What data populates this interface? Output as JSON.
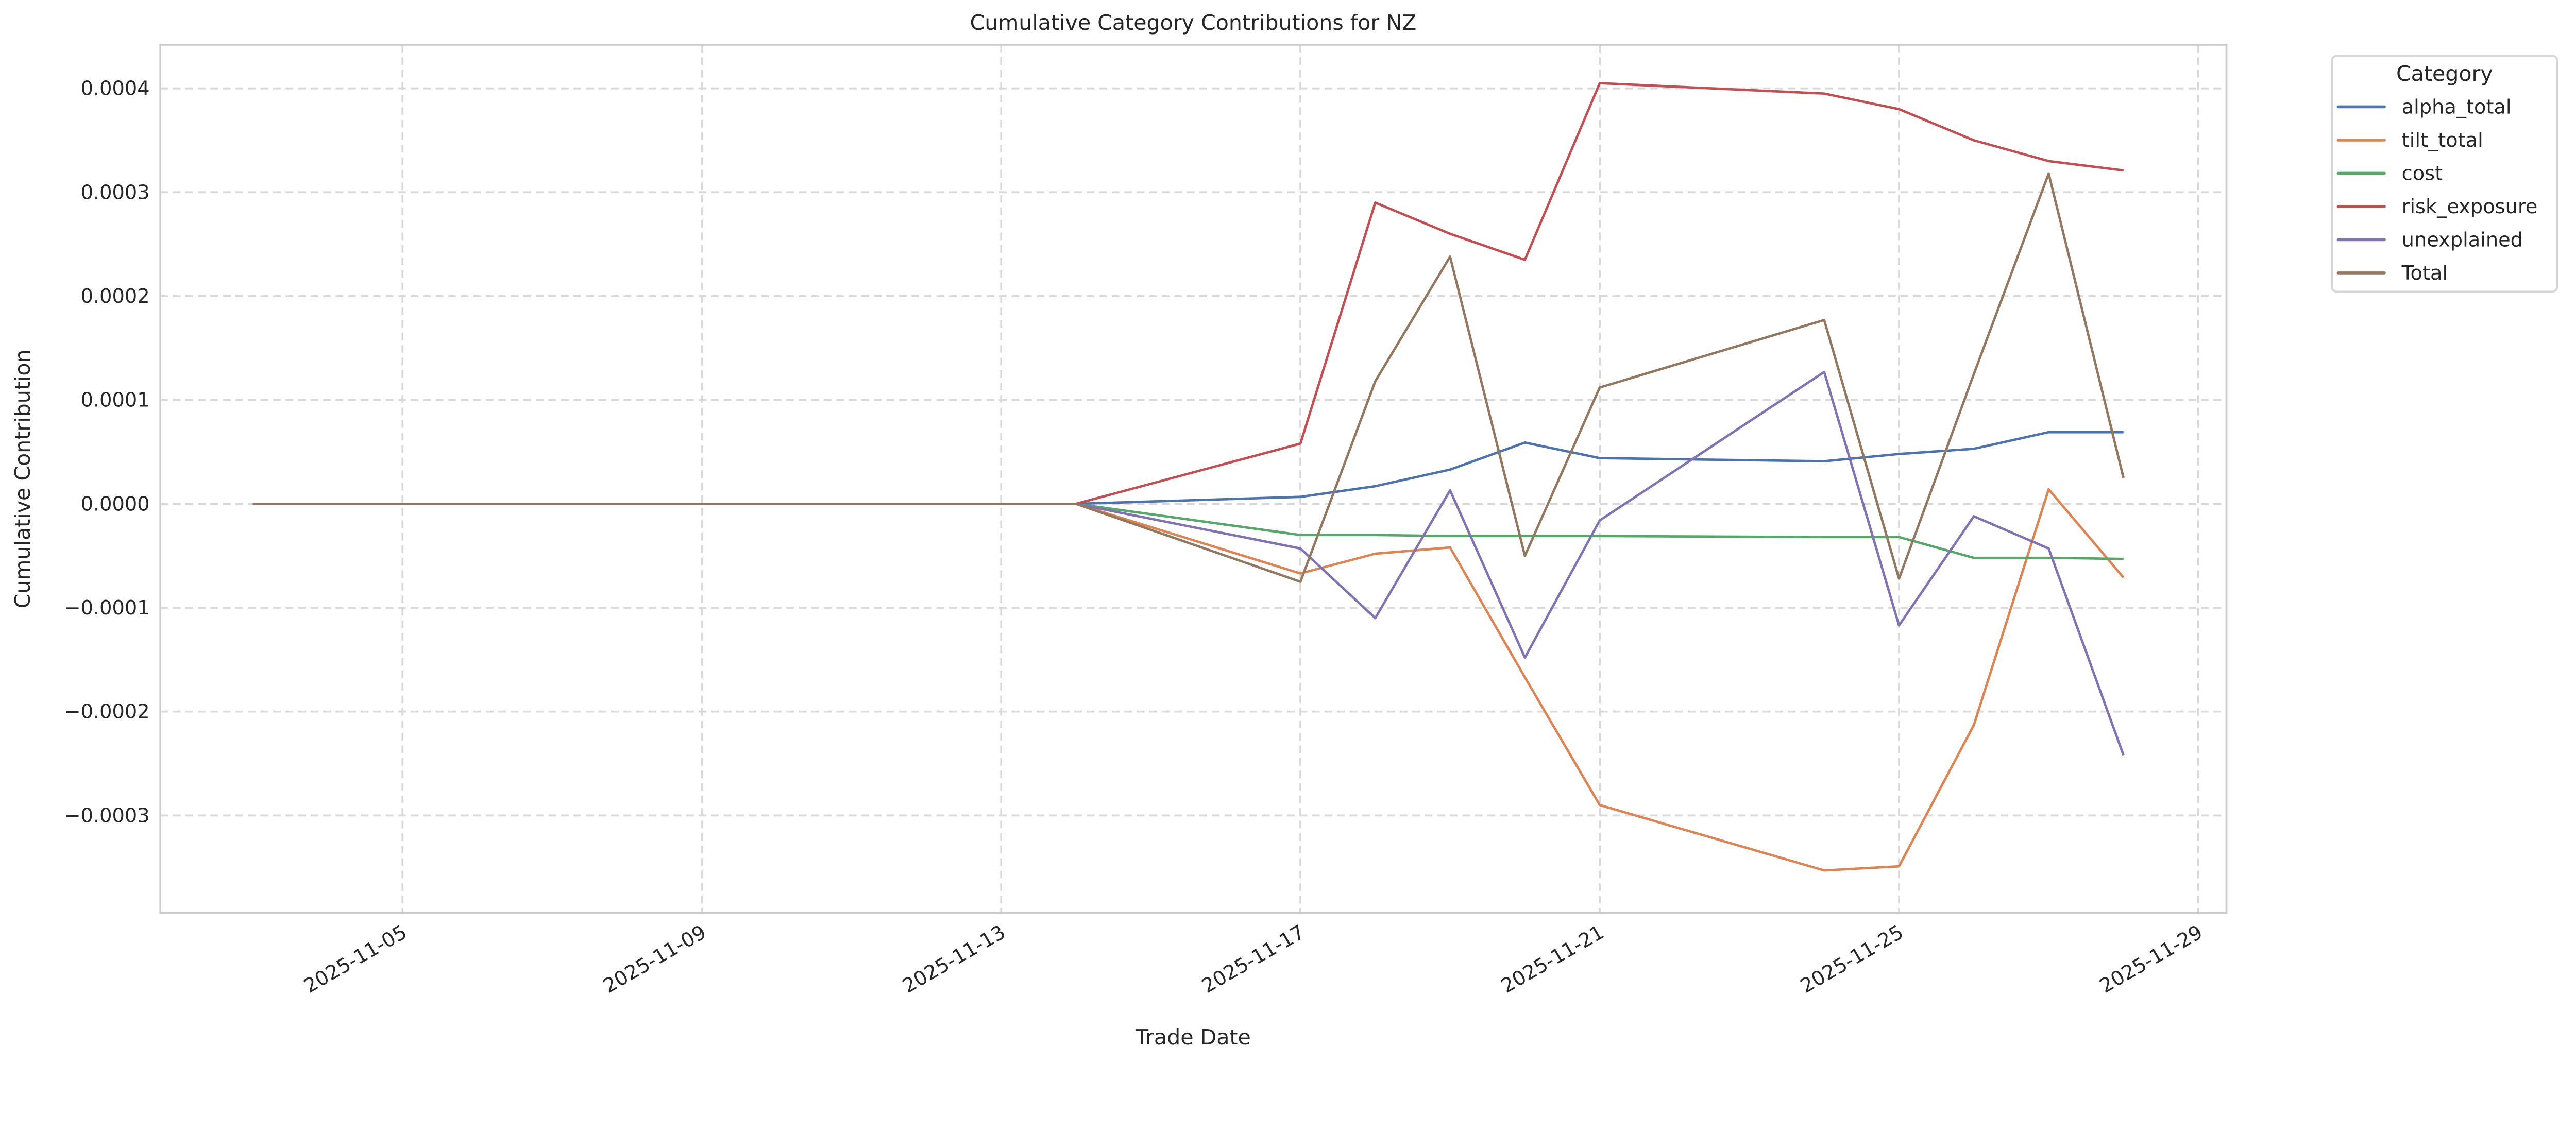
{
  "chart_data": {
    "type": "line",
    "title": "Cumulative Category Contributions for NZ",
    "xlabel": "Trade Date",
    "ylabel": "Cumulative Contribution",
    "x_tick_labels": [
      "2025-11-05",
      "2025-11-09",
      "2025-11-13",
      "2025-11-17",
      "2025-11-21",
      "2025-11-25",
      "2025-11-29"
    ],
    "y_ticks": [
      -0.0003,
      -0.0002,
      -0.0001,
      0.0,
      0.0001,
      0.0002,
      0.0003,
      0.0004
    ],
    "y_tick_labels": [
      "−0.0003",
      "−0.0002",
      "−0.0001",
      "0.0000",
      "0.0001",
      "0.0002",
      "0.0003",
      "0.0004"
    ],
    "ylim": [
      -0.000394,
      0.000442
    ],
    "xlim": [
      "2025-11-02",
      "2025-11-29"
    ],
    "grid": true,
    "legend": {
      "title": "Category",
      "placement": "outside-top-right"
    },
    "x": [
      "2025-11-03",
      "2025-11-04",
      "2025-11-05",
      "2025-11-06",
      "2025-11-07",
      "2025-11-10",
      "2025-11-11",
      "2025-11-12",
      "2025-11-13",
      "2025-11-14",
      "2025-11-17",
      "2025-11-18",
      "2025-11-19",
      "2025-11-20",
      "2025-11-21",
      "2025-11-24",
      "2025-11-25",
      "2025-11-26",
      "2025-11-27",
      "2025-11-28"
    ],
    "series": [
      {
        "name": "alpha_total",
        "color": "#4c72b0",
        "values": [
          0,
          0,
          0,
          0,
          0,
          0,
          0,
          0,
          0,
          0,
          6.7e-06,
          1.7e-05,
          3.3e-05,
          5.9e-05,
          4.4e-05,
          4.1e-05,
          4.8e-05,
          5.3e-05,
          6.9e-05,
          6.9e-05
        ]
      },
      {
        "name": "tilt_total",
        "color": "#dd8452",
        "values": [
          0,
          0,
          0,
          0,
          0,
          0,
          0,
          0,
          0,
          0,
          -6.7e-05,
          -4.8e-05,
          -4.2e-05,
          -0.000167,
          -0.00029,
          -0.000353,
          -0.000349,
          -0.000213,
          1.4e-05,
          -7.1e-05
        ]
      },
      {
        "name": "cost",
        "color": "#55a868",
        "values": [
          0,
          0,
          0,
          0,
          0,
          0,
          0,
          0,
          0,
          0,
          -3e-05,
          -3e-05,
          -3.1e-05,
          -3.1e-05,
          -3.1e-05,
          -3.2e-05,
          -3.2e-05,
          -5.2e-05,
          -5.2e-05,
          -5.3e-05
        ]
      },
      {
        "name": "risk_exposure",
        "color": "#c44e52",
        "values": [
          0,
          0,
          0,
          0,
          0,
          0,
          0,
          0,
          0,
          0,
          5.8e-05,
          0.00029,
          0.00026,
          0.000235,
          0.000405,
          0.000395,
          0.00038,
          0.00035,
          0.00033,
          0.000321
        ]
      },
      {
        "name": "unexplained",
        "color": "#8172b3",
        "values": [
          0,
          0,
          0,
          0,
          0,
          0,
          0,
          0,
          0,
          0,
          -4.3e-05,
          -0.00011,
          1.3e-05,
          -0.000148,
          -1.6e-05,
          0.000127,
          -0.000117,
          -1.2e-05,
          -4.3e-05,
          -0.000242
        ]
      },
      {
        "name": "Total",
        "color": "#937860",
        "values": [
          0,
          0,
          0,
          0,
          0,
          0,
          0,
          0,
          0,
          0,
          -7.5e-05,
          0.000118,
          0.000238,
          -5e-05,
          0.000112,
          0.000177,
          -7.2e-05,
          0.000125,
          0.000318,
          2.5e-05
        ]
      }
    ]
  }
}
